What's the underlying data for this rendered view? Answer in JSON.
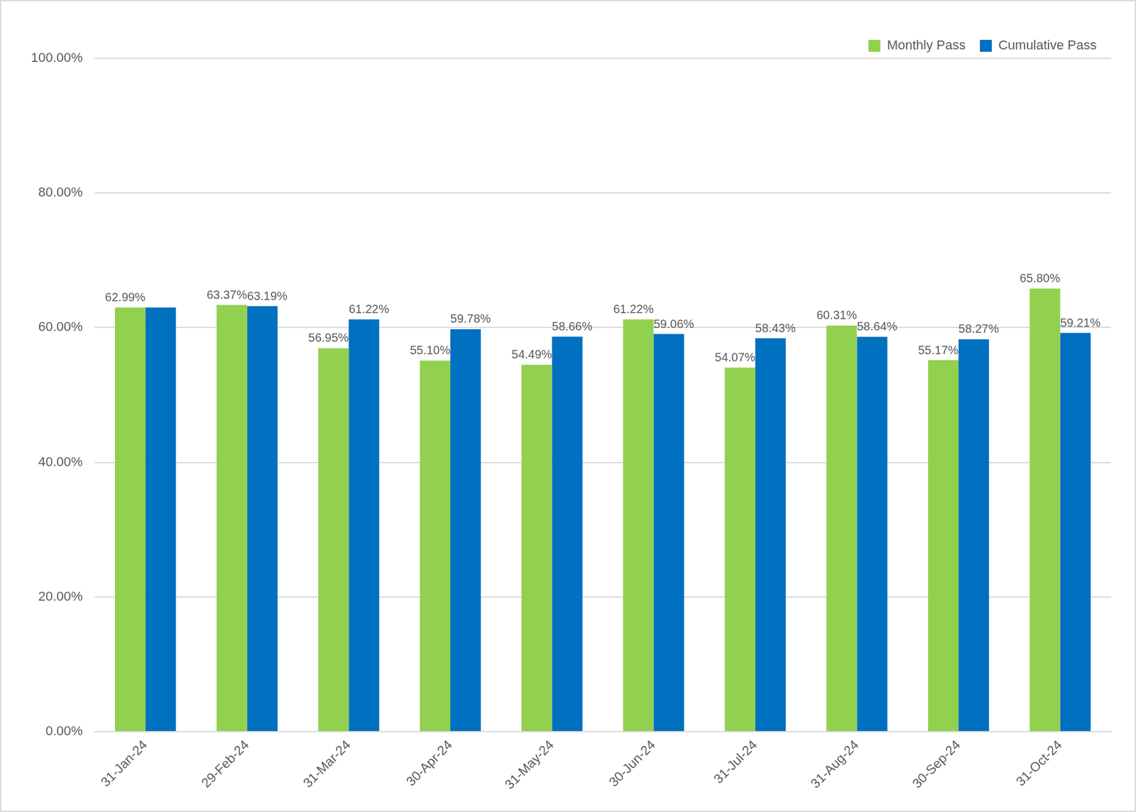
{
  "chart_data": {
    "type": "bar",
    "categories": [
      "31-Jan-24",
      "29-Feb-24",
      "31-Mar-24",
      "30-Apr-24",
      "31-May-24",
      "30-Jun-24",
      "31-Jul-24",
      "31-Aug-24",
      "30-Sep-24",
      "31-Oct-24"
    ],
    "series": [
      {
        "name": "Monthly Pass",
        "color": "#92D050",
        "values": [
          62.99,
          63.37,
          56.95,
          55.1,
          54.49,
          61.22,
          54.07,
          60.31,
          55.17,
          65.8
        ],
        "value_labels": [
          "62.99%",
          "63.37%",
          "56.95%",
          "55.10%",
          "54.49%",
          "61.22%",
          "54.07%",
          "60.31%",
          "55.17%",
          "65.80%"
        ]
      },
      {
        "name": "Cumulative Pass",
        "color": "#0070C0",
        "values": [
          62.99,
          63.19,
          61.22,
          59.78,
          58.66,
          59.06,
          58.43,
          58.64,
          58.27,
          59.21
        ],
        "value_labels": [
          null,
          "63.19%",
          "61.22%",
          "59.78%",
          "58.66%",
          "59.06%",
          "58.43%",
          "58.64%",
          "58.27%",
          "59.21%"
        ]
      }
    ],
    "ylim": [
      0,
      100
    ],
    "yticks": [
      {
        "value": 0,
        "label": "0.00%"
      },
      {
        "value": 20,
        "label": "20.00%"
      },
      {
        "value": 40,
        "label": "40.00%"
      },
      {
        "value": 60,
        "label": "60.00%"
      },
      {
        "value": 80,
        "label": "80.00%"
      },
      {
        "value": 100,
        "label": "100.00%"
      }
    ],
    "grid": true,
    "legend": "upper right",
    "data_labels": true
  }
}
